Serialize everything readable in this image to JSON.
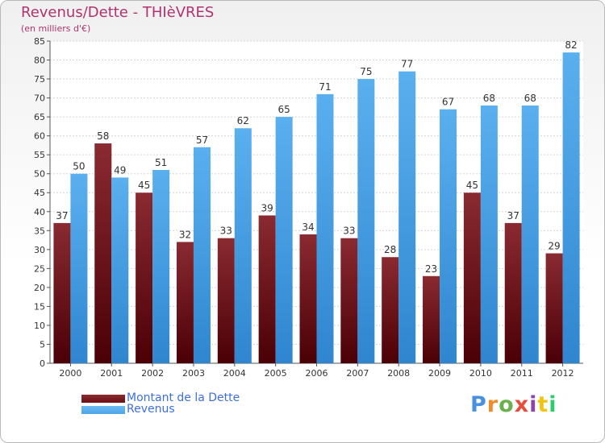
{
  "chart_data": {
    "type": "bar",
    "title": "Revenus/Dette - THIèVRES",
    "subtitle": "(en milliers d'€)",
    "categories": [
      "2000",
      "2001",
      "2002",
      "2003",
      "2004",
      "2005",
      "2006",
      "2007",
      "2008",
      "2009",
      "2010",
      "2011",
      "2012"
    ],
    "series": [
      {
        "name": "Montant de la Dette",
        "color": "#6b1014",
        "values": [
          37,
          58,
          45,
          32,
          33,
          39,
          34,
          33,
          28,
          23,
          45,
          37,
          29
        ]
      },
      {
        "name": "Revenus",
        "color": "#4ea6e8",
        "values": [
          50,
          49,
          51,
          57,
          62,
          65,
          71,
          75,
          77,
          67,
          68,
          68,
          82
        ]
      }
    ],
    "ylim": [
      0,
      85
    ],
    "ytick_step": 5,
    "grid": true,
    "legend_position": "bottom-left",
    "brand": {
      "text": "Proxiti",
      "colors": [
        "#4a90e2",
        "#f28c28",
        "#6ab04c",
        "#e74c3c",
        "#8e44ad",
        "#f1c40f",
        "#2ecc71"
      ]
    }
  }
}
